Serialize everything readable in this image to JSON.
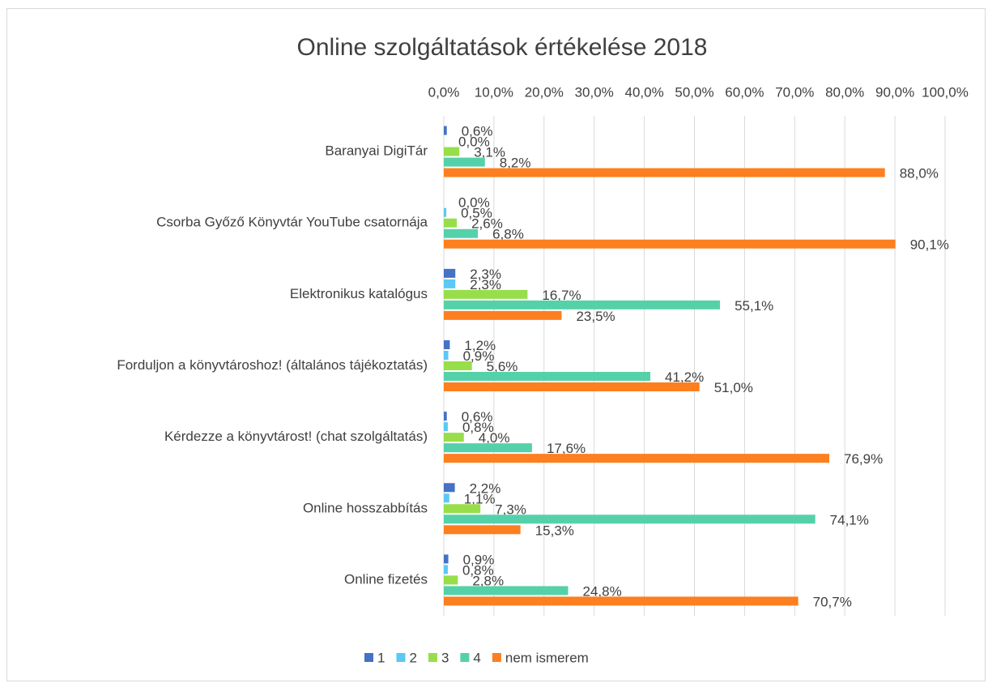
{
  "chart_data": {
    "type": "hbar",
    "title": "Online szolgáltatások értékelése 2018",
    "categories": [
      "Baranyai DigiTár",
      "Csorba Győző Könyvtár YouTube csatornája",
      "Elektronikus katalógus",
      "Forduljon a könyvtároshoz! (általános tájékoztatás)",
      "Kérdezze a könyvtárost! (chat szolgáltatás)",
      "Online hosszabbítás",
      "Online fizetés"
    ],
    "series": [
      {
        "name": "1",
        "color": "#4472c4",
        "values": [
          0.6,
          0.0,
          2.3,
          1.2,
          0.6,
          2.2,
          0.9
        ],
        "value_labels": [
          "0,6%",
          "0,0%",
          "2,3%",
          "1,2%",
          "0,6%",
          "2,2%",
          "0,9%"
        ]
      },
      {
        "name": "2",
        "color": "#5bc8f5",
        "values": [
          0.0,
          0.5,
          2.3,
          0.9,
          0.8,
          1.1,
          0.8
        ],
        "value_labels": [
          "0,0%",
          "0,5%",
          "2,3%",
          "0,9%",
          "0,8%",
          "1,1%",
          "0,8%"
        ]
      },
      {
        "name": "3",
        "color": "#98de4a",
        "values": [
          3.1,
          2.6,
          16.7,
          5.6,
          4.0,
          7.3,
          2.8
        ],
        "value_labels": [
          "3,1%",
          "2,6%",
          "16,7%",
          "5,6%",
          "4,0%",
          "7,3%",
          "2,8%"
        ]
      },
      {
        "name": "4",
        "color": "#55d1aa",
        "values": [
          8.2,
          6.8,
          55.1,
          41.2,
          17.6,
          74.1,
          24.8
        ],
        "value_labels": [
          "8,2%",
          "6,8%",
          "55,1%",
          "41,2%",
          "17,6%",
          "74,1%",
          "24,8%"
        ]
      },
      {
        "name": "nem ismerem",
        "color": "#fd7f1f",
        "values": [
          88.0,
          90.1,
          23.5,
          51.0,
          76.9,
          15.3,
          70.7
        ],
        "value_labels": [
          "88,0%",
          "90,1%",
          "23,5%",
          "51,0%",
          "76,9%",
          "15,3%",
          "70,7%"
        ]
      }
    ],
    "xlim": [
      0,
      100
    ],
    "xticks": [
      {
        "value": 0,
        "label": "0,0%"
      },
      {
        "value": 10,
        "label": "10,0%"
      },
      {
        "value": 20,
        "label": "20,0%"
      },
      {
        "value": 30,
        "label": "30,0%"
      },
      {
        "value": 40,
        "label": "40,0%"
      },
      {
        "value": 50,
        "label": "50,0%"
      },
      {
        "value": 60,
        "label": "60,0%"
      },
      {
        "value": 70,
        "label": "70,0%"
      },
      {
        "value": 80,
        "label": "80,0%"
      },
      {
        "value": 90,
        "label": "90,0%"
      },
      {
        "value": 100,
        "label": "100,0%"
      }
    ],
    "grid": true,
    "legend": "bottom"
  }
}
